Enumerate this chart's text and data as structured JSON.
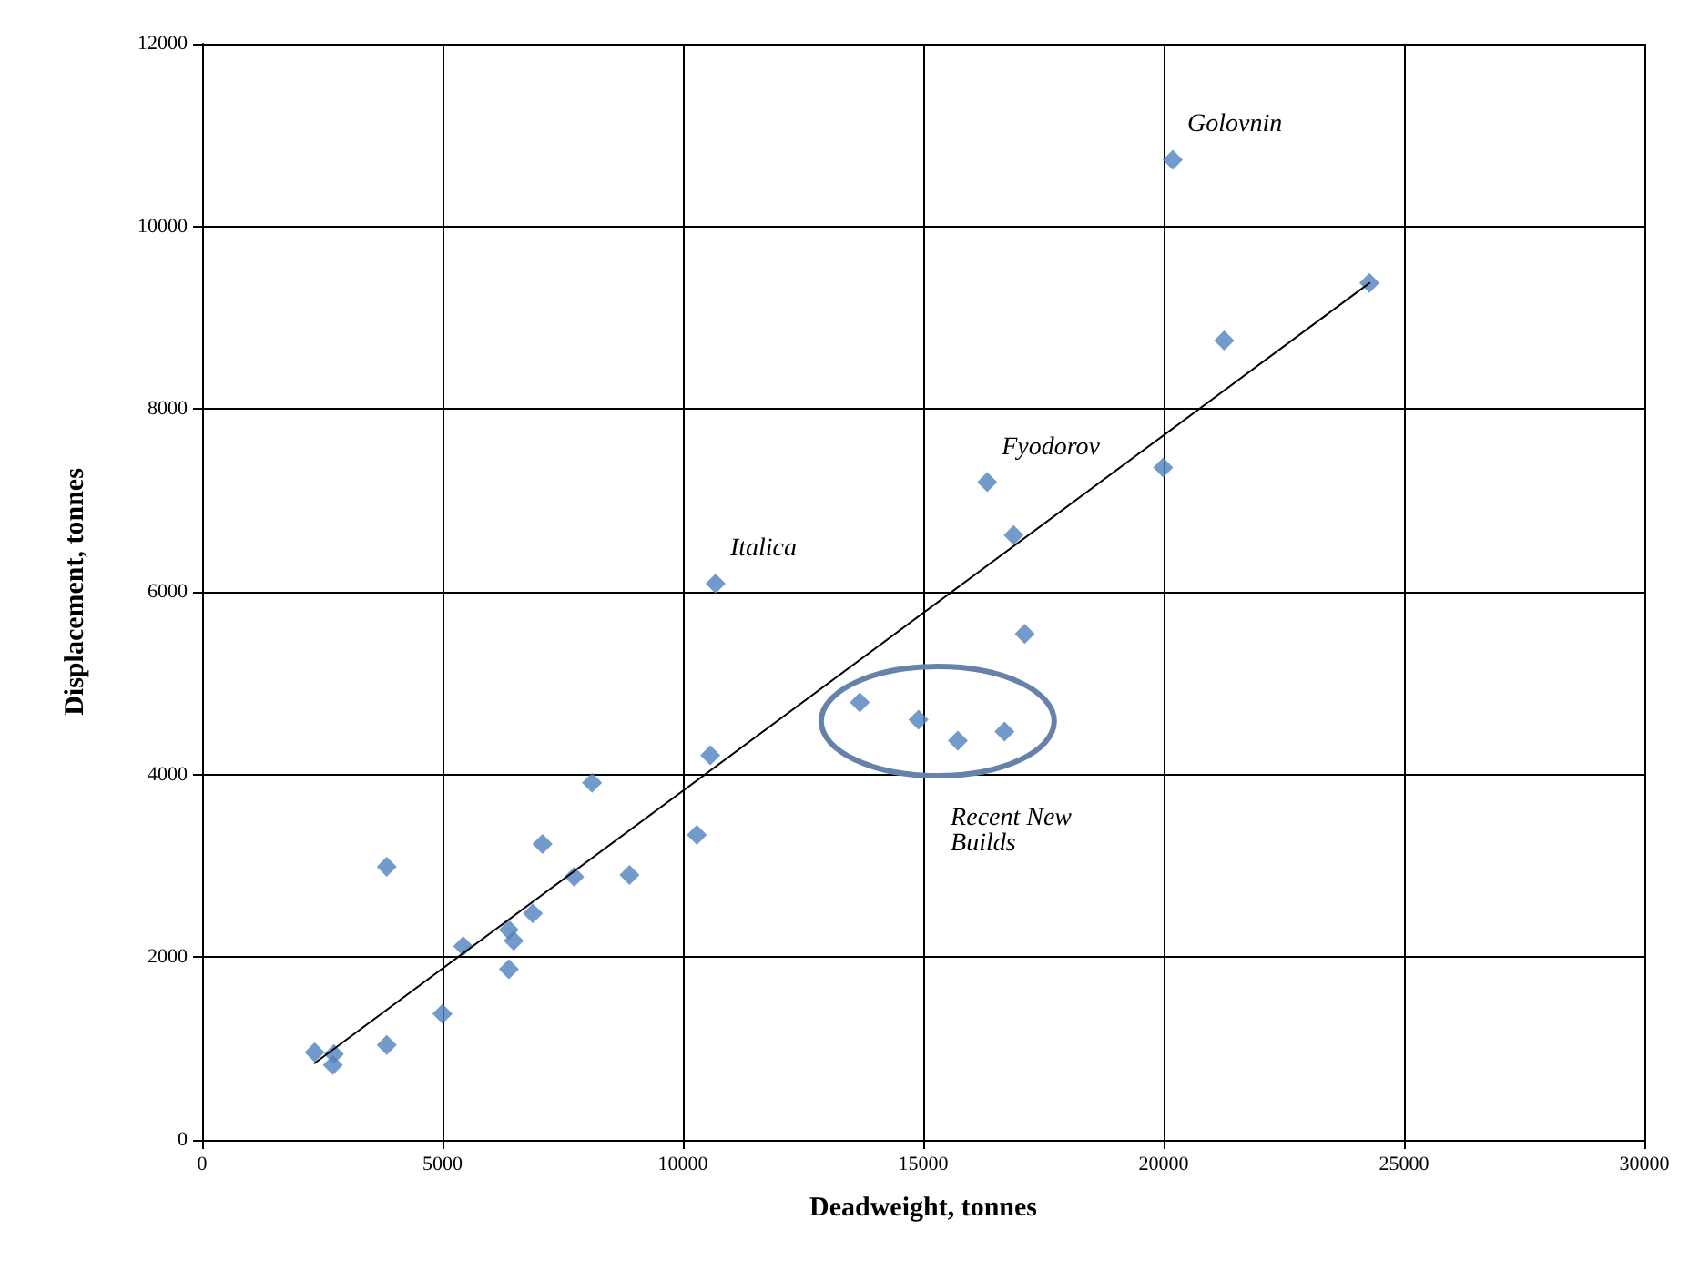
{
  "chart_data": {
    "type": "scatter",
    "xlabel": "Deadweight, tonnes",
    "ylabel": "Displacement, tonnes",
    "xlim": [
      0,
      30000
    ],
    "xticks": [
      0,
      5000,
      10000,
      15000,
      20000,
      25000,
      30000
    ],
    "ylim": [
      0,
      12000
    ],
    "yticks": [
      0,
      2000,
      4000,
      6000,
      8000,
      10000,
      12000
    ],
    "grid": true,
    "marker": "diamond",
    "series": [
      {
        "color": "#4f81bd",
        "x": [
          2340,
          2740,
          2720,
          3840,
          3840,
          5000,
          5430,
          6380,
          6480,
          6380,
          6880,
          7080,
          7740,
          8110,
          8890,
          10290,
          10570,
          10680,
          13680,
          14900,
          15720,
          16690,
          17110,
          16880,
          16330,
          19990,
          21260,
          24280,
          20190
        ],
        "values": [
          960,
          940,
          820,
          1040,
          2990,
          1380,
          2120,
          2300,
          2180,
          1870,
          2480,
          3240,
          2880,
          3910,
          2900,
          3340,
          4210,
          6090,
          4790,
          4600,
          4370,
          4470,
          5540,
          6620,
          7200,
          7360,
          8750,
          9380,
          10730
        ]
      },
      {
        "type": "line",
        "color": "#000000",
        "marker": "none",
        "x": [
          2340,
          24280
        ],
        "values": [
          840,
          9380
        ]
      }
    ],
    "annotations": [
      {
        "text": "Golovnin",
        "x": 20190,
        "y": 10730
      },
      {
        "text": "Fyodorov",
        "x": 16330,
        "y": 7200
      },
      {
        "text": "Italica",
        "x": 10680,
        "y": 6090
      },
      "Recent New Builds"
    ]
  }
}
